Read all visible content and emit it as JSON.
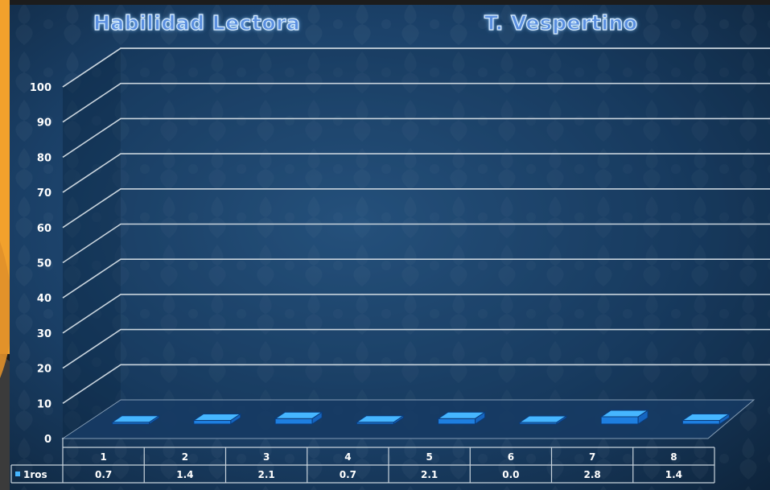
{
  "titles": {
    "left": "Habilidad Lectora",
    "right": "T. Vespertino"
  },
  "colors": {
    "background": "#16365a",
    "accent_orange": "#f2a12c",
    "bar_front": "#1e7fe0",
    "bar_top": "#46b6ff",
    "gridline": "#c8d3dc",
    "text": "#ffffff"
  },
  "chart_data": {
    "type": "bar",
    "title": "Habilidad Lectora  T. Vespertino",
    "categories": [
      "1",
      "2",
      "3",
      "4",
      "5",
      "6",
      "7",
      "8"
    ],
    "series": [
      {
        "name": "1ros",
        "values": [
          0.7,
          1.4,
          2.1,
          0.7,
          2.1,
          0.0,
          2.8,
          1.4
        ]
      }
    ],
    "value_labels": [
      "0.7",
      "1.4",
      "2.1",
      "0.7",
      "2.1",
      "0.0",
      "2.8",
      "1.4"
    ],
    "yticks": [
      "0",
      "10",
      "20",
      "30",
      "40",
      "50",
      "60",
      "70",
      "80",
      "90",
      "100"
    ],
    "ylim": [
      0,
      100
    ],
    "grid": true,
    "three_d": true,
    "legend": "data-table-left",
    "xlabel": "",
    "ylabel": ""
  }
}
